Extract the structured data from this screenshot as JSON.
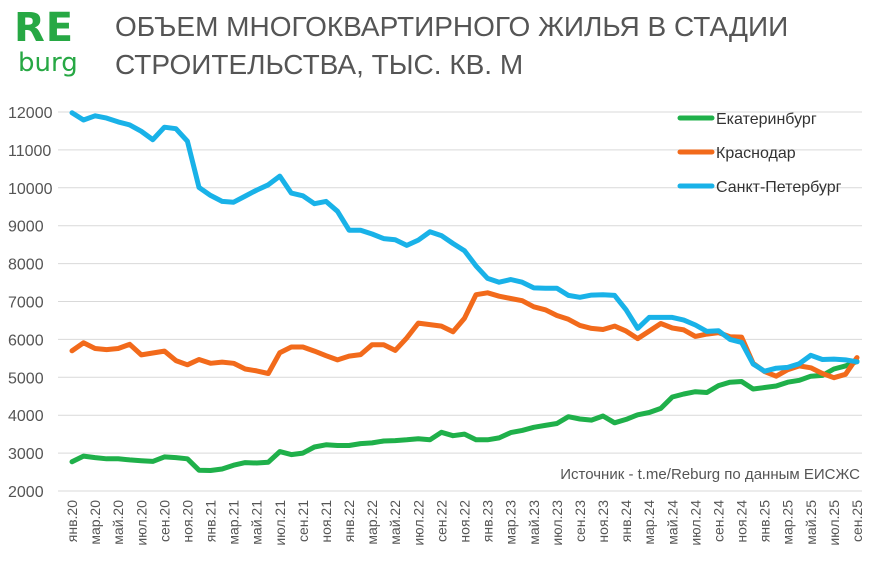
{
  "logo": {
    "line1": "RE",
    "line2": "burg"
  },
  "title_line1": "ОБЪЕМ МНОГОКВАРТИРНОГО ЖИЛЬЯ В СТАДИИ",
  "title_line2": "СТРОИТЕЛЬСТВА, ТЫС. КВ. М",
  "source": "Источник - t.me/Reburg по данным ЕИСЖС",
  "colors": {
    "ekb": "#1fb04a",
    "krasnodar": "#f26a1b",
    "spb": "#19b2e8",
    "grid": "#d9d9d9",
    "text": "#555555"
  },
  "chart_data": {
    "type": "line",
    "title": "ОБЪЕМ МНОГОКВАРТИРНОГО ЖИЛЬЯ В СТАДИИ СТРОИТЕЛЬСТВА, ТЫС. КВ. М",
    "ylim": [
      2000,
      12000
    ],
    "yticks": [
      2000,
      3000,
      4000,
      5000,
      6000,
      7000,
      8000,
      9000,
      10000,
      11000,
      12000
    ],
    "grid": "horizontal",
    "legend_position": "top-right",
    "x": [
      "янв.20",
      "фев.20",
      "мар.20",
      "апр.20",
      "май.20",
      "июн.20",
      "июл.20",
      "авг.20",
      "сен.20",
      "окт.20",
      "ноя.20",
      "дек.20",
      "янв.21",
      "фев.21",
      "мар.21",
      "апр.21",
      "май.21",
      "июн.21",
      "июл.21",
      "авг.21",
      "сен.21",
      "окт.21",
      "ноя.21",
      "дек.21",
      "янв.22",
      "фев.22",
      "мар.22",
      "апр.22",
      "май.22",
      "июн.22",
      "июл.22",
      "авг.22",
      "сен.22",
      "окт.22",
      "ноя.22",
      "дек.22",
      "янв.23",
      "фев.23",
      "мар.23",
      "апр.23",
      "май.23",
      "июн.23",
      "июл.23",
      "авг.23",
      "сен.23",
      "окт.23",
      "ноя.23",
      "дек.23",
      "янв.24",
      "фев.24",
      "мар.24",
      "апр.24",
      "май.24",
      "июн.24",
      "июл.24",
      "авг.24",
      "сен.24",
      "окт.24",
      "ноя.24",
      "дек.24",
      "янв.25",
      "фев.25",
      "мар.25",
      "апр.25",
      "май.25",
      "июн.25",
      "июл.25",
      "авг.25",
      "сен.25"
    ],
    "xtick_labels": [
      "янв.20",
      "мар.20",
      "май.20",
      "июл.20",
      "сен.20",
      "ноя.20",
      "янв.21",
      "мар.21",
      "май.21",
      "июл.21",
      "сен.21",
      "ноя.21",
      "янв.22",
      "мар.22",
      "май.22",
      "июл.22",
      "сен.22",
      "ноя.22",
      "янв.23",
      "мар.23",
      "май.23",
      "июл.23",
      "сен.23",
      "ноя.23",
      "янв.24",
      "мар.24",
      "май.24",
      "июл.24",
      "сен.24",
      "ноя.24",
      "янв.25",
      "мар.25",
      "май.25",
      "июл.25",
      "сен.25"
    ],
    "series": [
      {
        "name": "Екатеринбург",
        "color": "#1fb04a",
        "values": [
          2770,
          2920,
          2880,
          2850,
          2850,
          2820,
          2800,
          2780,
          2900,
          2880,
          2850,
          2550,
          2540,
          2580,
          2680,
          2750,
          2740,
          2760,
          3040,
          2960,
          3000,
          3160,
          3220,
          3200,
          3200,
          3250,
          3270,
          3320,
          3330,
          3350,
          3380,
          3350,
          3550,
          3460,
          3500,
          3350,
          3350,
          3400,
          3540,
          3600,
          3680,
          3730,
          3780,
          3960,
          3900,
          3870,
          3980,
          3800,
          3890,
          4010,
          4070,
          4180,
          4480,
          4560,
          4620,
          4600,
          4780,
          4870,
          4890,
          4690,
          4730,
          4770,
          4870,
          4920,
          5030,
          5050,
          5220,
          5300,
          5420
        ]
      },
      {
        "name": "Краснодар",
        "color": "#f26a1b",
        "values": [
          5700,
          5910,
          5760,
          5730,
          5760,
          5870,
          5590,
          5640,
          5690,
          5440,
          5330,
          5470,
          5370,
          5400,
          5370,
          5220,
          5170,
          5100,
          5650,
          5800,
          5800,
          5690,
          5570,
          5460,
          5560,
          5600,
          5860,
          5860,
          5710,
          6040,
          6430,
          6390,
          6350,
          6200,
          6560,
          7180,
          7230,
          7140,
          7080,
          7020,
          6860,
          6780,
          6630,
          6530,
          6370,
          6290,
          6260,
          6350,
          6220,
          6020,
          6220,
          6420,
          6300,
          6250,
          6080,
          6140,
          6180,
          6070,
          6060,
          5370,
          5150,
          5030,
          5200,
          5300,
          5250,
          5100,
          4990,
          5080,
          5520
        ]
      },
      {
        "name": "Санкт-Петербург",
        "color": "#19b2e8",
        "values": [
          11980,
          11790,
          11900,
          11840,
          11740,
          11660,
          11490,
          11270,
          11600,
          11560,
          11230,
          10010,
          9800,
          9640,
          9620,
          9780,
          9940,
          10080,
          10310,
          9860,
          9790,
          9580,
          9640,
          9380,
          8880,
          8880,
          8780,
          8660,
          8630,
          8480,
          8620,
          8840,
          8740,
          8530,
          8340,
          7940,
          7610,
          7510,
          7580,
          7510,
          7360,
          7350,
          7350,
          7160,
          7110,
          7170,
          7180,
          7160,
          6780,
          6290,
          6580,
          6580,
          6580,
          6510,
          6380,
          6210,
          6230,
          6000,
          5920,
          5350,
          5160,
          5240,
          5260,
          5360,
          5580,
          5470,
          5480,
          5460,
          5410
        ]
      }
    ]
  }
}
